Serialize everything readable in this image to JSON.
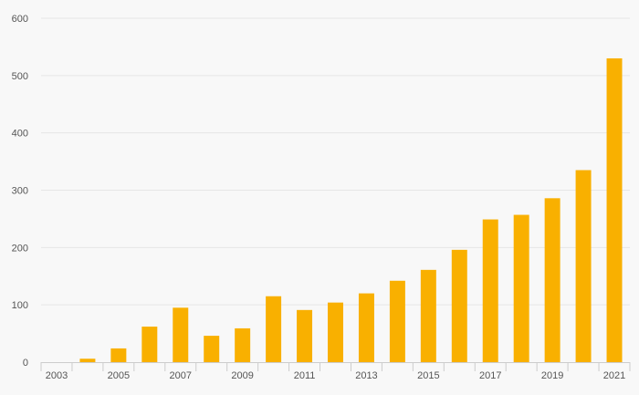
{
  "chart_data": {
    "type": "bar",
    "categories": [
      "2003",
      "2004",
      "2005",
      "2006",
      "2007",
      "2008",
      "2009",
      "2010",
      "2011",
      "2012",
      "2013",
      "2014",
      "2015",
      "2016",
      "2017",
      "2018",
      "2019",
      "2020",
      "2021"
    ],
    "x_tick_labels": [
      "2003",
      "2005",
      "2007",
      "2009",
      "2011",
      "2013",
      "2015",
      "2017",
      "2019",
      "2021"
    ],
    "values": [
      0,
      6,
      24,
      62,
      95,
      46,
      59,
      115,
      91,
      104,
      120,
      142,
      161,
      196,
      249,
      257,
      286,
      335,
      530
    ],
    "ylim": [
      0,
      600
    ],
    "y_ticks": [
      0,
      100,
      200,
      300,
      400,
      500,
      600
    ],
    "title": "",
    "xlabel": "",
    "ylabel": "",
    "grid": true,
    "colors": {
      "bar": "#f9b000",
      "grid": "#e6e6e6",
      "axis": "#cccccc",
      "text": "#555555",
      "background": "#f8f8f8"
    }
  }
}
